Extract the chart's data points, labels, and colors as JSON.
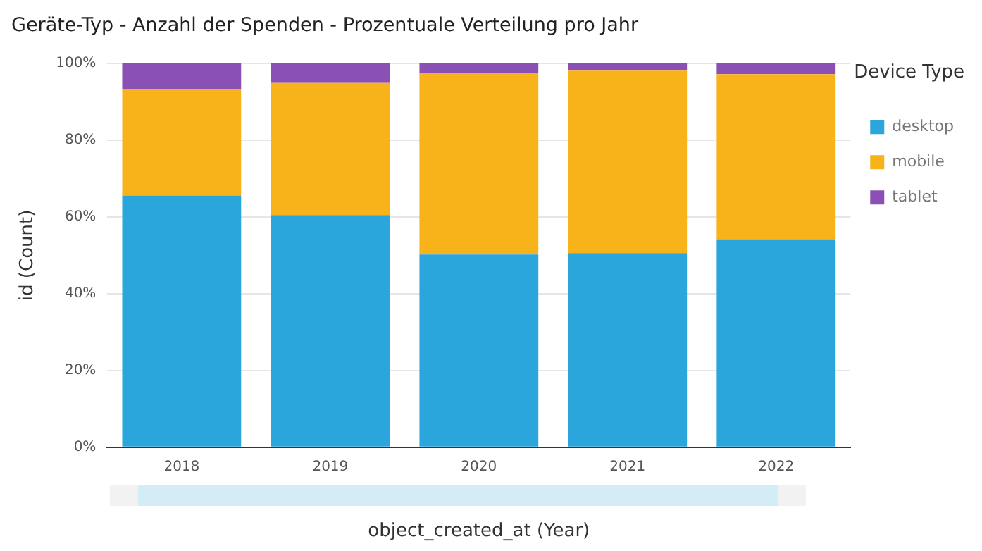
{
  "chart_data": {
    "type": "bar",
    "title": "Geräte-Typ - Anzahl der Spenden - Prozentuale Verteilung pro Jahr",
    "xlabel": "object_created_at (Year)",
    "ylabel": "id (Count)",
    "legend_title": "Device Type",
    "categories": [
      "2018",
      "2019",
      "2020",
      "2021",
      "2022"
    ],
    "series": [
      {
        "name": "desktop",
        "color": "#2aa6dc",
        "values": [
          65.6,
          60.5,
          50.2,
          50.6,
          54.2
        ]
      },
      {
        "name": "mobile",
        "color": "#f8b21a",
        "values": [
          27.7,
          34.4,
          47.4,
          47.5,
          43.0
        ]
      },
      {
        "name": "tablet",
        "color": "#8b50b4",
        "values": [
          6.7,
          5.1,
          2.4,
          1.9,
          2.8
        ]
      }
    ],
    "stacked": true,
    "ylim": [
      0,
      100
    ],
    "yticks": [
      {
        "value": 0,
        "label": "0%"
      },
      {
        "value": 20,
        "label": "20%"
      },
      {
        "value": 40,
        "label": "40%"
      },
      {
        "value": 60,
        "label": "60%"
      },
      {
        "value": 80,
        "label": "80%"
      },
      {
        "value": 100,
        "label": "100%"
      }
    ],
    "grid": "y",
    "legend": "right"
  }
}
